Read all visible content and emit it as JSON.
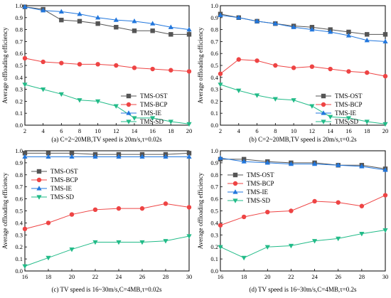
{
  "chart_data": [
    {
      "type": "line",
      "caption": "(a) C=2~20MB,TV speed  is 20m/s,τ=0.02s",
      "ylabel": "Average offloading efficiency",
      "xlabel": "",
      "x": [
        2,
        4,
        6,
        8,
        10,
        12,
        14,
        16,
        18,
        20
      ],
      "xticks": [
        2,
        4,
        6,
        8,
        10,
        12,
        14,
        16,
        18,
        20
      ],
      "xlim": [
        2,
        20
      ],
      "yticks": [
        0.0,
        0.1,
        0.2,
        0.3,
        0.4,
        0.5,
        0.6,
        0.7,
        0.8,
        0.9,
        1.0
      ],
      "ylim": [
        0,
        1.0
      ],
      "legend_position": "bottom-right",
      "series": [
        {
          "name": "TMS-OST",
          "marker": "square",
          "color": "#555555",
          "values": [
            0.99,
            0.97,
            0.88,
            0.87,
            0.85,
            0.82,
            0.79,
            0.79,
            0.76,
            0.76
          ]
        },
        {
          "name": "TMS-BCP",
          "marker": "circle",
          "color": "#ee4444",
          "values": [
            0.56,
            0.53,
            0.52,
            0.51,
            0.51,
            0.5,
            0.48,
            0.47,
            0.46,
            0.45
          ]
        },
        {
          "name": "TMS-IE",
          "marker": "triangle-up",
          "color": "#2277dd",
          "values": [
            0.99,
            0.96,
            0.95,
            0.93,
            0.9,
            0.88,
            0.87,
            0.85,
            0.82,
            0.8
          ]
        },
        {
          "name": "TMS-SD",
          "marker": "triangle-down",
          "color": "#22bb88",
          "values": [
            0.34,
            0.3,
            0.26,
            0.21,
            0.2,
            0.16,
            0.06,
            0.06,
            0.03,
            0.01
          ]
        }
      ]
    },
    {
      "type": "line",
      "caption": "(b) C=2~20MB,TV speed is  20m/s,τ=0.2s",
      "ylabel": "Average offloading efficiency",
      "xlabel": "",
      "x": [
        2,
        4,
        6,
        8,
        10,
        12,
        14,
        16,
        18,
        20
      ],
      "xticks": [
        2,
        4,
        6,
        8,
        10,
        12,
        14,
        16,
        18,
        20
      ],
      "xlim": [
        2,
        20
      ],
      "yticks": [
        0.0,
        0.1,
        0.2,
        0.3,
        0.4,
        0.5,
        0.6,
        0.7,
        0.8,
        0.9,
        1.0
      ],
      "ylim": [
        0,
        1.0
      ],
      "legend_position": "bottom-right",
      "series": [
        {
          "name": "TMS-OST",
          "marker": "square",
          "color": "#555555",
          "values": [
            0.93,
            0.9,
            0.87,
            0.85,
            0.83,
            0.82,
            0.8,
            0.78,
            0.76,
            0.76
          ]
        },
        {
          "name": "TMS-BCP",
          "marker": "circle",
          "color": "#ee4444",
          "values": [
            0.43,
            0.55,
            0.54,
            0.5,
            0.48,
            0.49,
            0.47,
            0.45,
            0.44,
            0.41
          ]
        },
        {
          "name": "TMS-IE",
          "marker": "triangle-up",
          "color": "#2277dd",
          "values": [
            0.92,
            0.9,
            0.87,
            0.85,
            0.82,
            0.8,
            0.78,
            0.75,
            0.71,
            0.7
          ]
        },
        {
          "name": "TMS-SD",
          "marker": "triangle-down",
          "color": "#22bb88",
          "values": [
            0.34,
            0.29,
            0.25,
            0.22,
            0.21,
            0.16,
            0.07,
            0.06,
            0.03,
            0.01
          ]
        }
      ]
    },
    {
      "type": "line",
      "caption": "(c) TV speed is 16~30m/s,C=4MB,τ=0.02s",
      "ylabel": "Average offloading efficiency",
      "xlabel": "",
      "x": [
        16,
        18,
        20,
        22,
        24,
        26,
        28,
        30
      ],
      "xticks": [
        16,
        18,
        20,
        22,
        24,
        26,
        28,
        30
      ],
      "xlim": [
        16,
        30
      ],
      "yticks": [
        0.0,
        0.1,
        0.2,
        0.3,
        0.4,
        0.5,
        0.6,
        0.7,
        0.8,
        0.9,
        1.0
      ],
      "ylim": [
        0,
        1.0
      ],
      "legend_position": "center-left",
      "series": [
        {
          "name": "TMS-OST",
          "marker": "square",
          "color": "#555555",
          "values": [
            0.98,
            0.98,
            0.98,
            0.97,
            0.97,
            0.97,
            0.97,
            0.98
          ]
        },
        {
          "name": "TMS-BCP",
          "marker": "circle",
          "color": "#ee4444",
          "values": [
            0.35,
            0.4,
            0.47,
            0.51,
            0.52,
            0.52,
            0.56,
            0.53
          ]
        },
        {
          "name": "TMS-IE",
          "marker": "triangle-up",
          "color": "#2277dd",
          "values": [
            0.95,
            0.95,
            0.95,
            0.95,
            0.95,
            0.95,
            0.95,
            0.95
          ]
        },
        {
          "name": "TMS-SD",
          "marker": "triangle-down",
          "color": "#22bb88",
          "values": [
            0.04,
            0.11,
            0.18,
            0.24,
            0.24,
            0.24,
            0.25,
            0.29
          ]
        }
      ]
    },
    {
      "type": "line",
      "caption": "(d) TV speed is 16~30m/s,C=4MB,τ=0.2s",
      "ylabel": "Average offloading efficiency",
      "xlabel": "",
      "x": [
        16,
        18,
        20,
        22,
        24,
        26,
        28,
        30
      ],
      "xticks": [
        16,
        18,
        20,
        22,
        24,
        26,
        28,
        30
      ],
      "xlim": [
        16,
        30
      ],
      "yticks": [
        0.0,
        0.1,
        0.2,
        0.3,
        0.4,
        0.5,
        0.6,
        0.7,
        0.8,
        0.9,
        1.0
      ],
      "ylim": [
        0,
        1.0
      ],
      "legend_position": "center-left",
      "series": [
        {
          "name": "TMS-OST",
          "marker": "square",
          "color": "#555555",
          "values": [
            0.93,
            0.93,
            0.91,
            0.9,
            0.9,
            0.88,
            0.88,
            0.85
          ]
        },
        {
          "name": "TMS-BCP",
          "marker": "circle",
          "color": "#ee4444",
          "values": [
            0.38,
            0.45,
            0.49,
            0.5,
            0.58,
            0.57,
            0.54,
            0.63
          ]
        },
        {
          "name": "TMS-IE",
          "marker": "triangle-up",
          "color": "#2277dd",
          "values": [
            0.94,
            0.91,
            0.9,
            0.89,
            0.89,
            0.88,
            0.87,
            0.84
          ]
        },
        {
          "name": "TMS-SD",
          "marker": "triangle-down",
          "color": "#22bb88",
          "values": [
            0.2,
            0.11,
            0.2,
            0.21,
            0.25,
            0.27,
            0.31,
            0.34
          ]
        }
      ]
    }
  ]
}
